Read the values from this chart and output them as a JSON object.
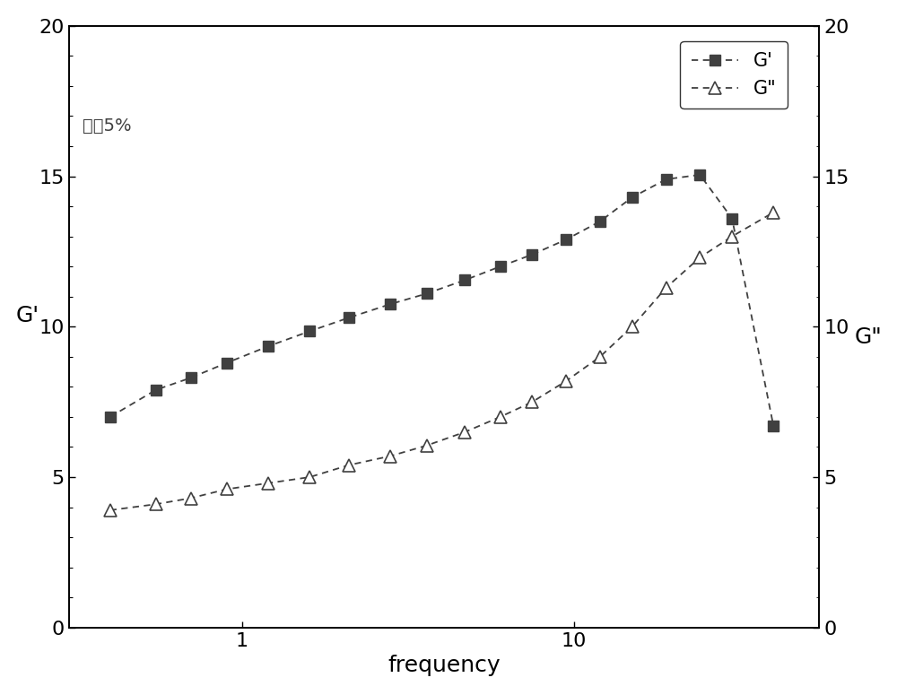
{
  "title": "",
  "xlabel": "frequency",
  "ylabel_left": "G'",
  "ylabel_right": "G\"",
  "annotation": "应变5%",
  "legend_g_prime": "G'",
  "legend_g_double_prime": "G\"",
  "xlim_log": [
    0.3,
    55
  ],
  "ylim": [
    0,
    20
  ],
  "xticks": [
    1,
    10
  ],
  "yticks": [
    0,
    5,
    10,
    15,
    20
  ],
  "g_prime_x": [
    0.4,
    0.55,
    0.7,
    0.9,
    1.2,
    1.6,
    2.1,
    2.8,
    3.6,
    4.7,
    6.0,
    7.5,
    9.5,
    12.0,
    15.0,
    19.0,
    24.0,
    30.0,
    40.0
  ],
  "g_prime_y": [
    7.0,
    7.9,
    8.3,
    8.8,
    9.35,
    9.85,
    10.3,
    10.75,
    11.1,
    11.55,
    12.0,
    12.4,
    12.9,
    13.5,
    14.3,
    14.9,
    15.05,
    13.6,
    6.7
  ],
  "g_double_prime_x": [
    0.4,
    0.55,
    0.7,
    0.9,
    1.2,
    1.6,
    2.1,
    2.8,
    3.6,
    4.7,
    6.0,
    7.5,
    9.5,
    12.0,
    15.0,
    19.0,
    24.0,
    30.0,
    40.0
  ],
  "g_double_prime_y": [
    3.9,
    4.1,
    4.3,
    4.6,
    4.8,
    5.0,
    5.4,
    5.7,
    6.05,
    6.5,
    7.0,
    7.5,
    8.2,
    9.0,
    10.0,
    11.3,
    12.3,
    13.0,
    13.8
  ],
  "line_color": "#404040",
  "background_color": "#ffffff",
  "font_size_label": 18,
  "font_size_tick": 16,
  "font_size_legend": 15,
  "font_size_annotation": 14
}
